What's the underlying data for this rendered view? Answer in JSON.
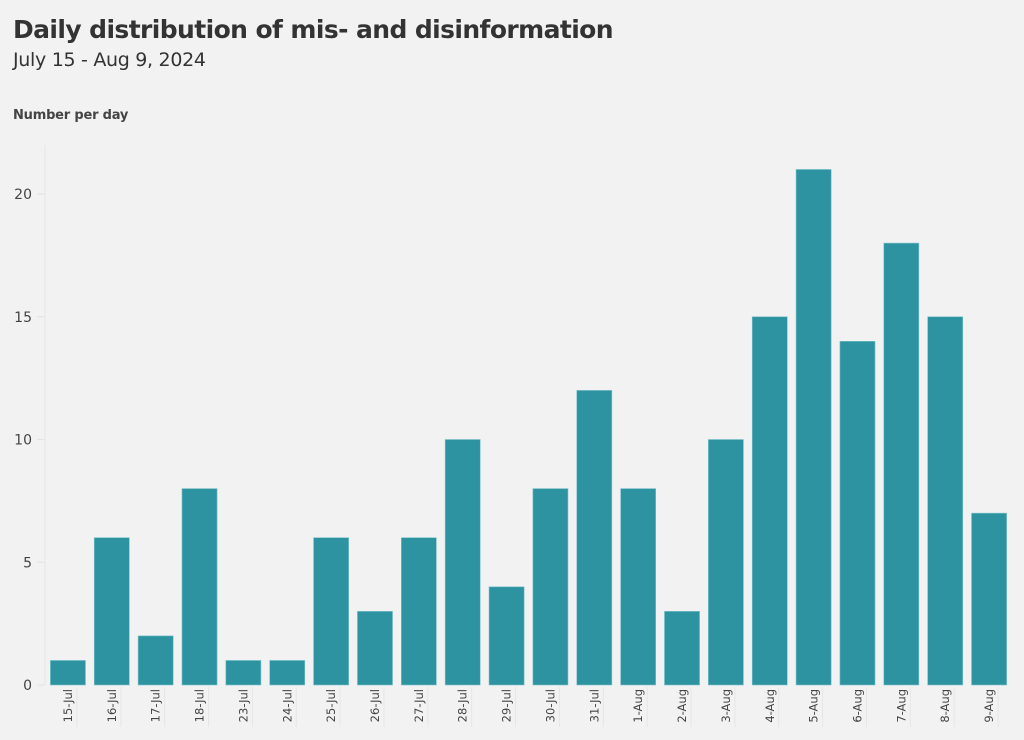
{
  "chart_data": {
    "type": "bar",
    "title": "Daily distribution of mis- and disinformation",
    "subtitle": "July 15 - Aug 9, 2024",
    "xlabel": "",
    "ylabel": "Number per day",
    "categories": [
      "15-Jul",
      "16-Jul",
      "17-Jul",
      "18-Jul",
      "23-Jul",
      "24-Jul",
      "25-Jul",
      "26-Jul",
      "27-Jul",
      "28-Jul",
      "29-Jul",
      "30-Jul",
      "31-Jul",
      "1-Aug",
      "2-Aug",
      "3-Aug",
      "4-Aug",
      "5-Aug",
      "6-Aug",
      "7-Aug",
      "8-Aug",
      "9-Aug"
    ],
    "values": [
      1,
      6,
      2,
      8,
      1,
      1,
      6,
      3,
      6,
      10,
      4,
      8,
      12,
      8,
      3,
      10,
      15,
      21,
      14,
      18,
      15,
      7
    ],
    "ylim": [
      0,
      22
    ],
    "yticks": [
      0,
      5,
      10,
      15,
      20
    ],
    "bar_color": "#2e93a0",
    "grid": false,
    "legend": "none"
  }
}
